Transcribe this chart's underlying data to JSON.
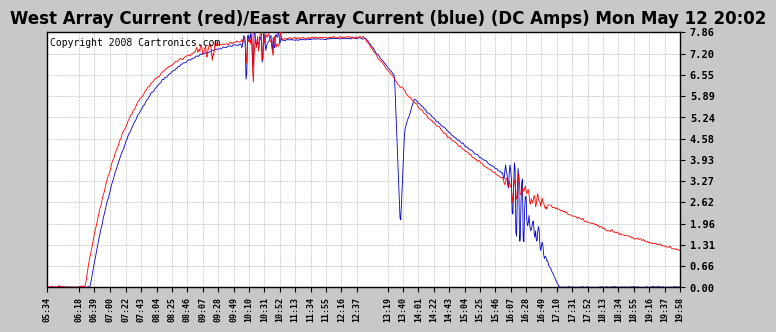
{
  "title": "West Array Current (red)/East Array Current (blue) (DC Amps) Mon May 12 20:02",
  "copyright": "Copyright 2008 Cartronics.com",
  "title_fontsize": 12,
  "copyright_fontsize": 7,
  "background_color": "#c8c8c8",
  "plot_bg_color": "#ffffff",
  "grid_color": "#b0b0b0",
  "red_color": "#ff0000",
  "blue_color": "#0000cc",
  "ylim": [
    0.0,
    7.86
  ],
  "yticks": [
    0.0,
    0.66,
    1.31,
    1.96,
    2.62,
    3.27,
    3.93,
    4.58,
    5.24,
    5.89,
    6.55,
    7.2,
    7.86
  ],
  "x_labels": [
    "05:34",
    "06:18",
    "06:39",
    "07:00",
    "07:22",
    "07:43",
    "08:04",
    "08:25",
    "08:46",
    "09:07",
    "09:28",
    "09:49",
    "10:10",
    "10:31",
    "10:52",
    "11:13",
    "11:34",
    "11:55",
    "12:16",
    "12:37",
    "13:19",
    "13:40",
    "14:01",
    "14:22",
    "14:43",
    "15:04",
    "15:25",
    "15:46",
    "16:07",
    "16:28",
    "16:49",
    "17:10",
    "17:31",
    "17:52",
    "18:13",
    "18:34",
    "18:55",
    "19:16",
    "19:37",
    "19:58"
  ],
  "start_time": "05:34",
  "end_time": "19:58"
}
